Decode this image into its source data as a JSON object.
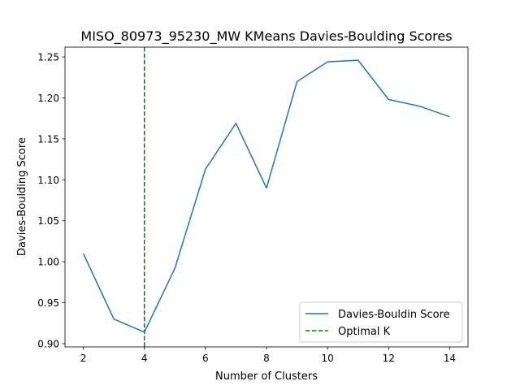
{
  "chart_data": {
    "type": "line",
    "title": "MISO_80973_95230_MW KMeans Davies-Boulding Scores",
    "xlabel": "Number of Clusters",
    "ylabel": "Davies-Boulding Score",
    "xlim": [
      1.4,
      14.6
    ],
    "ylim": [
      0.896,
      1.262
    ],
    "xticks": [
      2,
      4,
      6,
      8,
      10,
      12,
      14
    ],
    "yticks": [
      0.9,
      0.95,
      1.0,
      1.05,
      1.1,
      1.15,
      1.2,
      1.25
    ],
    "ytick_labels": [
      "0.90",
      "0.95",
      "1.00",
      "1.05",
      "1.10",
      "1.15",
      "1.20",
      "1.25"
    ],
    "grid": false,
    "legend_position": "lower-right",
    "series": [
      {
        "name": "Davies-Bouldin Score",
        "color": "#1f77b4",
        "style": "solid",
        "x": [
          2,
          3,
          4,
          5,
          6,
          7,
          8,
          9,
          10,
          11,
          12,
          13,
          14
        ],
        "y": [
          1.01,
          0.93,
          0.914,
          0.992,
          1.113,
          1.169,
          1.09,
          1.22,
          1.244,
          1.246,
          1.198,
          1.19,
          1.177
        ]
      }
    ],
    "vlines": [
      {
        "name": "Optimal K",
        "x": 4,
        "color": "#008000",
        "style": "dashed"
      }
    ]
  }
}
